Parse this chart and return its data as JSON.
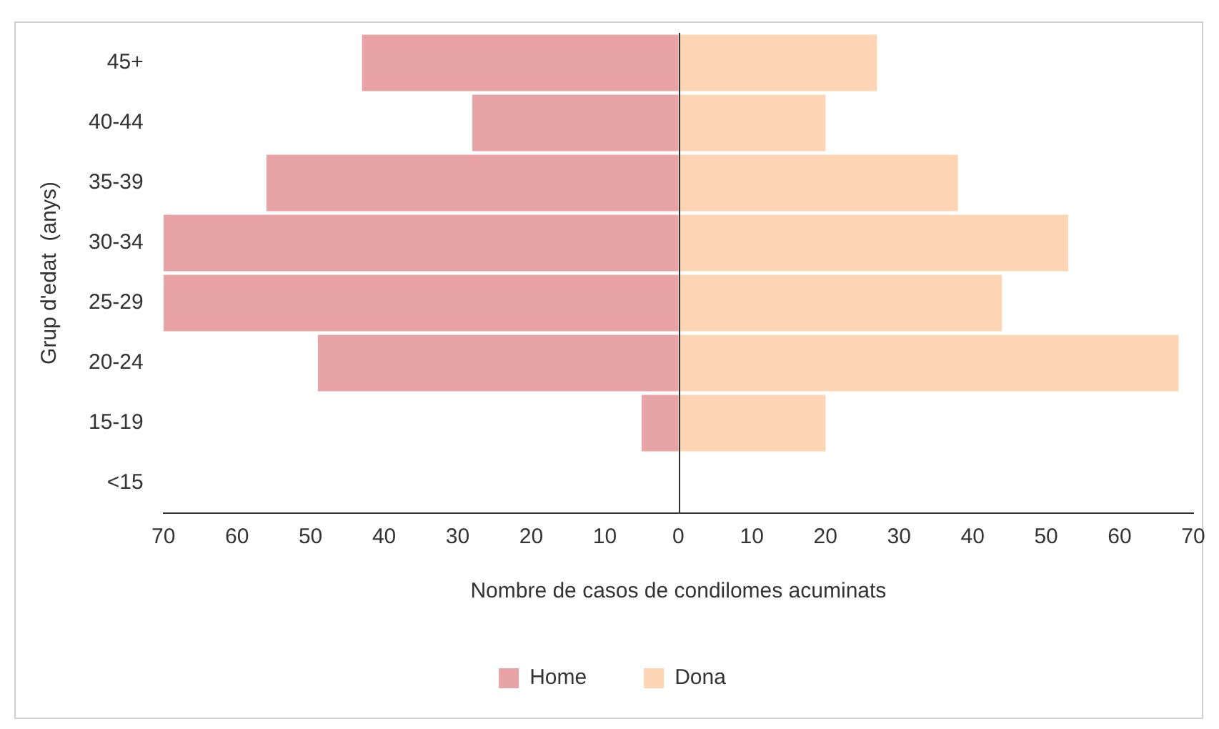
{
  "chart_data": {
    "type": "bar",
    "orientation": "horizontal",
    "stacked": true,
    "categories": [
      "45+",
      "40-44",
      "35-39",
      "30-34",
      "25-29",
      "20-24",
      "15-19",
      "<15"
    ],
    "series": [
      {
        "name": "Home",
        "color": "#e8a3a6",
        "values": [
          -43,
          -28,
          -56,
          -70,
          -70,
          -49,
          -5,
          0
        ]
      },
      {
        "name": "Dona",
        "color": "#fdd5b4",
        "values": [
          27,
          20,
          38,
          53,
          44,
          68,
          20,
          0
        ]
      }
    ],
    "xlim": [
      -70,
      70
    ],
    "xticks": [
      {
        "value": -70,
        "label": "70"
      },
      {
        "value": -60,
        "label": "60"
      },
      {
        "value": -50,
        "label": "50"
      },
      {
        "value": -40,
        "label": "40"
      },
      {
        "value": -30,
        "label": "30"
      },
      {
        "value": -20,
        "label": "20"
      },
      {
        "value": -10,
        "label": "10"
      },
      0,
      10,
      20,
      30,
      40,
      50,
      60,
      70
    ],
    "xlabel": "Nombre de casos de condilomes acuminats",
    "ylabel": "Grup d'edat  (anys)",
    "ref_lines": [
      {
        "axis": "x",
        "value": 0,
        "color": "#333333"
      }
    ],
    "grid": false,
    "legend": "bottom"
  }
}
